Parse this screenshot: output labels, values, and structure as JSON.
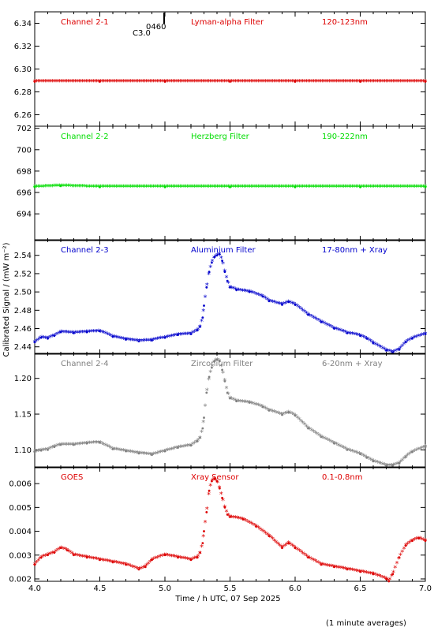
{
  "footer_note": "(1 minute averages)",
  "xaxis": {
    "label": "Time / h UTC, 07 Sep 2025",
    "range": [
      4.0,
      7.0
    ],
    "ticks": [
      "4.0",
      "4.5",
      "5.0",
      "5.5",
      "6.0",
      "6.5",
      "7.0"
    ]
  },
  "ylabel": "Calibrated Signal / (mW m⁻²)",
  "marker_note": [
    "0460",
    "C3.0"
  ],
  "chart_data": [
    {
      "type": "scatter",
      "channel": "Channel 2-1",
      "filter": "Lyman-alpha Filter",
      "band": "120-123nm",
      "color": "#dd0000",
      "ylim": [
        6.25,
        6.35
      ],
      "yticks": [
        "6.26",
        "6.28",
        "6.30",
        "6.32",
        "6.34"
      ],
      "points": [
        [
          4.0,
          6.289
        ],
        [
          4.5,
          6.289
        ],
        [
          5.0,
          6.289
        ],
        [
          5.5,
          6.289
        ],
        [
          6.0,
          6.289
        ],
        [
          6.5,
          6.289
        ],
        [
          7.0,
          6.289
        ]
      ]
    },
    {
      "type": "scatter",
      "channel": "Channel 2-2",
      "filter": "Herzberg Filter",
      "band": "190-222nm",
      "color": "#00dd00",
      "ylim": [
        691.5,
        702.2
      ],
      "yticks": [
        "694",
        "696",
        "698",
        "700",
        "702"
      ],
      "points": [
        [
          4.0,
          696.5
        ],
        [
          4.2,
          696.6
        ],
        [
          4.5,
          696.5
        ],
        [
          5.0,
          696.5
        ],
        [
          5.5,
          696.5
        ],
        [
          6.0,
          696.5
        ],
        [
          6.5,
          696.5
        ],
        [
          7.0,
          696.5
        ]
      ]
    },
    {
      "type": "scatter",
      "channel": "Channel 2-3",
      "filter": "Aluminium Filter",
      "band": "17-80nm + Xray",
      "color": "#0000cc",
      "ylim": [
        2.432,
        2.557
      ],
      "yticks": [
        "2.44",
        "2.46",
        "2.48",
        "2.50",
        "2.52",
        "2.54"
      ],
      "points": [
        [
          4.0,
          2.445
        ],
        [
          4.05,
          2.45
        ],
        [
          4.1,
          2.449
        ],
        [
          4.15,
          2.452
        ],
        [
          4.2,
          2.456
        ],
        [
          4.3,
          2.455
        ],
        [
          4.4,
          2.456
        ],
        [
          4.5,
          2.457
        ],
        [
          4.6,
          2.451
        ],
        [
          4.7,
          2.448
        ],
        [
          4.8,
          2.446
        ],
        [
          4.9,
          2.447
        ],
        [
          5.0,
          2.45
        ],
        [
          5.1,
          2.453
        ],
        [
          5.2,
          2.454
        ],
        [
          5.25,
          2.458
        ],
        [
          5.27,
          2.462
        ],
        [
          5.29,
          2.472
        ],
        [
          5.3,
          2.485
        ],
        [
          5.32,
          2.505
        ],
        [
          5.34,
          2.522
        ],
        [
          5.36,
          2.532
        ],
        [
          5.38,
          2.538
        ],
        [
          5.4,
          2.54
        ],
        [
          5.42,
          2.541
        ],
        [
          5.44,
          2.534
        ],
        [
          5.46,
          2.522
        ],
        [
          5.48,
          2.512
        ],
        [
          5.5,
          2.505
        ],
        [
          5.55,
          2.502
        ],
        [
          5.65,
          2.5
        ],
        [
          5.75,
          2.495
        ],
        [
          5.8,
          2.49
        ],
        [
          5.9,
          2.486
        ],
        [
          5.95,
          2.489
        ],
        [
          6.0,
          2.486
        ],
        [
          6.1,
          2.475
        ],
        [
          6.2,
          2.467
        ],
        [
          6.3,
          2.46
        ],
        [
          6.4,
          2.455
        ],
        [
          6.5,
          2.452
        ],
        [
          6.55,
          2.449
        ],
        [
          6.6,
          2.444
        ],
        [
          6.7,
          2.436
        ],
        [
          6.75,
          2.434
        ],
        [
          6.8,
          2.437
        ],
        [
          6.85,
          2.445
        ],
        [
          6.9,
          2.449
        ],
        [
          7.0,
          2.454
        ]
      ]
    },
    {
      "type": "scatter",
      "channel": "Channel 2-4",
      "filter": "Zirconium Filter",
      "band": "6-20nm + Xray",
      "color": "#808080",
      "ylim": [
        1.075,
        1.235
      ],
      "yticks": [
        "1.10",
        "1.15",
        "1.20"
      ],
      "points": [
        [
          4.0,
          1.097
        ],
        [
          4.05,
          1.099
        ],
        [
          4.1,
          1.1
        ],
        [
          4.15,
          1.104
        ],
        [
          4.2,
          1.107
        ],
        [
          4.3,
          1.107
        ],
        [
          4.4,
          1.109
        ],
        [
          4.5,
          1.11
        ],
        [
          4.6,
          1.101
        ],
        [
          4.7,
          1.098
        ],
        [
          4.8,
          1.095
        ],
        [
          4.9,
          1.093
        ],
        [
          5.0,
          1.098
        ],
        [
          5.1,
          1.103
        ],
        [
          5.2,
          1.106
        ],
        [
          5.25,
          1.112
        ],
        [
          5.27,
          1.117
        ],
        [
          5.29,
          1.13
        ],
        [
          5.3,
          1.145
        ],
        [
          5.32,
          1.18
        ],
        [
          5.34,
          1.202
        ],
        [
          5.36,
          1.215
        ],
        [
          5.38,
          1.224
        ],
        [
          5.4,
          1.226
        ],
        [
          5.42,
          1.224
        ],
        [
          5.44,
          1.212
        ],
        [
          5.46,
          1.196
        ],
        [
          5.48,
          1.18
        ],
        [
          5.5,
          1.172
        ],
        [
          5.55,
          1.168
        ],
        [
          5.65,
          1.166
        ],
        [
          5.75,
          1.16
        ],
        [
          5.8,
          1.155
        ],
        [
          5.9,
          1.149
        ],
        [
          5.95,
          1.152
        ],
        [
          6.0,
          1.148
        ],
        [
          6.1,
          1.13
        ],
        [
          6.2,
          1.118
        ],
        [
          6.3,
          1.109
        ],
        [
          6.4,
          1.1
        ],
        [
          6.5,
          1.094
        ],
        [
          6.55,
          1.089
        ],
        [
          6.6,
          1.084
        ],
        [
          6.7,
          1.078
        ],
        [
          6.75,
          1.078
        ],
        [
          6.8,
          1.081
        ],
        [
          6.85,
          1.09
        ],
        [
          6.9,
          1.097
        ],
        [
          7.0,
          1.104
        ]
      ]
    },
    {
      "type": "scatter",
      "channel": "GOES",
      "filter": "Xray Sensor",
      "band": "0.1-0.8nm",
      "color": "#dd0000",
      "ylim": [
        0.0019,
        0.0067
      ],
      "yticks": [
        "0.002",
        "0.003",
        "0.004",
        "0.005",
        "0.006"
      ],
      "points": [
        [
          4.0,
          0.0026
        ],
        [
          4.05,
          0.0029
        ],
        [
          4.1,
          0.003
        ],
        [
          4.15,
          0.0031
        ],
        [
          4.2,
          0.0033
        ],
        [
          4.25,
          0.0032
        ],
        [
          4.3,
          0.003
        ],
        [
          4.4,
          0.0029
        ],
        [
          4.5,
          0.0028
        ],
        [
          4.6,
          0.0027
        ],
        [
          4.7,
          0.0026
        ],
        [
          4.8,
          0.0024
        ],
        [
          4.85,
          0.0025
        ],
        [
          4.9,
          0.0028
        ],
        [
          5.0,
          0.003
        ],
        [
          5.1,
          0.0029
        ],
        [
          5.2,
          0.0028
        ],
        [
          5.25,
          0.0029
        ],
        [
          5.27,
          0.0031
        ],
        [
          5.29,
          0.0035
        ],
        [
          5.3,
          0.004
        ],
        [
          5.32,
          0.0048
        ],
        [
          5.34,
          0.0057
        ],
        [
          5.36,
          0.0061
        ],
        [
          5.38,
          0.0062
        ],
        [
          5.4,
          0.0061
        ],
        [
          5.42,
          0.0058
        ],
        [
          5.44,
          0.0054
        ],
        [
          5.46,
          0.005
        ],
        [
          5.48,
          0.0047
        ],
        [
          5.5,
          0.0046
        ],
        [
          5.6,
          0.0045
        ],
        [
          5.7,
          0.0042
        ],
        [
          5.8,
          0.0038
        ],
        [
          5.9,
          0.0033
        ],
        [
          5.95,
          0.0035
        ],
        [
          6.0,
          0.0033
        ],
        [
          6.1,
          0.0029
        ],
        [
          6.2,
          0.0026
        ],
        [
          6.3,
          0.0025
        ],
        [
          6.4,
          0.0024
        ],
        [
          6.5,
          0.0023
        ],
        [
          6.6,
          0.0022
        ],
        [
          6.7,
          0.002
        ],
        [
          6.72,
          0.0019
        ],
        [
          6.75,
          0.0022
        ],
        [
          6.8,
          0.0029
        ],
        [
          6.85,
          0.0034
        ],
        [
          6.9,
          0.0036
        ],
        [
          6.95,
          0.0037
        ],
        [
          7.0,
          0.0036
        ]
      ]
    }
  ]
}
